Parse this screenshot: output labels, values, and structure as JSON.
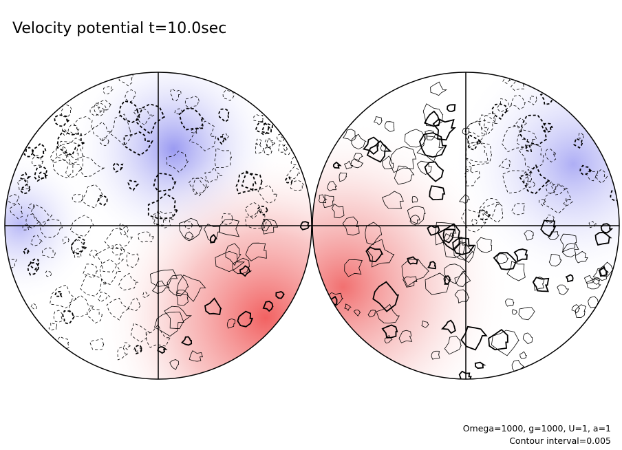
{
  "chart_data": {
    "type": "contour",
    "title": "Velocity potential t=10.0sec",
    "annotations": [
      "Omega=1000, g=1000, U=1, a=1",
      "Contour interval=0.005"
    ]
  }
}
